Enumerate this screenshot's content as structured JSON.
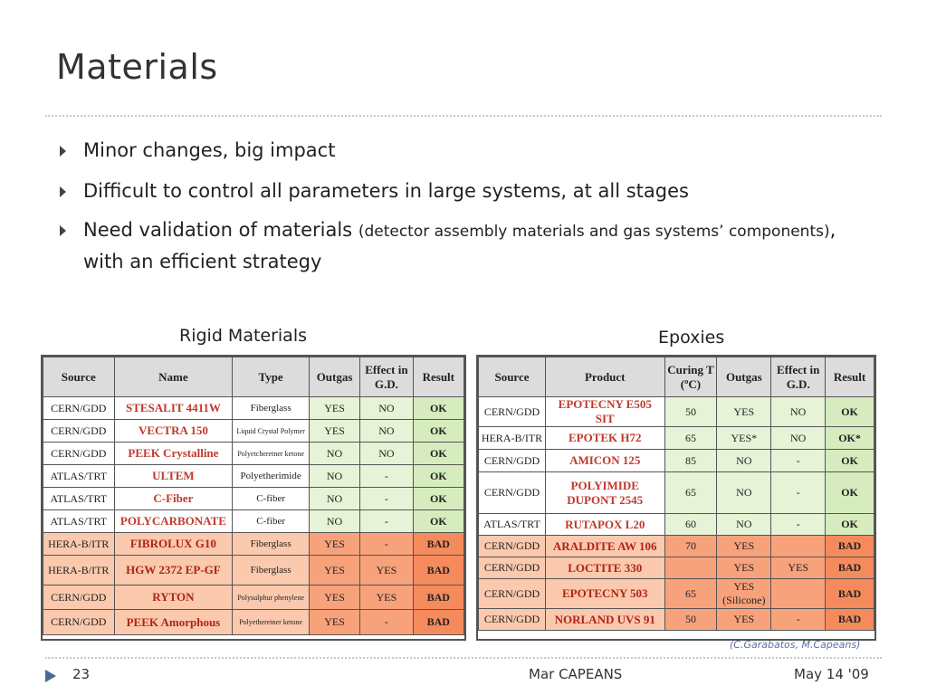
{
  "slide": {
    "title": "Materials",
    "bullets": [
      {
        "text": "Minor changes, big impact"
      },
      {
        "text": "Difficult to control all parameters in large systems, at all stages"
      },
      {
        "pre": "Need validation of materials ",
        "small": "(detector assembly materials and gas systems’ components)",
        "post": ", with an efficient strategy"
      }
    ]
  },
  "rigid": {
    "caption": "Rigid Materials",
    "headers": [
      "Source",
      "Name",
      "Type",
      "Outgas",
      "Effect in G.D.",
      "Result"
    ],
    "rows": [
      {
        "source": "CERN/GDD",
        "name": "STESALIT 4411W",
        "type": "Fiberglass",
        "outgas": "YES",
        "effect": "NO",
        "result": "OK",
        "status": "good"
      },
      {
        "source": "CERN/GDD",
        "name": "VECTRA 150",
        "type": "Liquid Crystal Polymer",
        "outgas": "YES",
        "effect": "NO",
        "result": "OK",
        "status": "good"
      },
      {
        "source": "CERN/GDD",
        "name": "PEEK Crystalline",
        "type": "Polyetcheretner ketone",
        "outgas": "NO",
        "effect": "NO",
        "result": "OK",
        "status": "good"
      },
      {
        "source": "ATLAS/TRT",
        "name": "ULTEM",
        "type": "Polyetherimide",
        "outgas": "NO",
        "effect": "-",
        "result": "OK",
        "status": "good"
      },
      {
        "source": "ATLAS/TRT",
        "name": "C-Fiber",
        "type": "C-fiber",
        "outgas": "NO",
        "effect": "-",
        "result": "OK",
        "status": "good"
      },
      {
        "source": "ATLAS/TRT",
        "name": "POLYCARBONATE",
        "type": "C-fiber",
        "outgas": "NO",
        "effect": "-",
        "result": "OK",
        "status": "good"
      },
      {
        "source": "HERA-B/ITR",
        "name": "FIBROLUX G10",
        "type": "Fiberglass",
        "outgas": "YES",
        "effect": "-",
        "result": "BAD",
        "status": "bad"
      },
      {
        "source": "HERA-B/ITR",
        "name": "HGW 2372 EP-GF",
        "type": "Fiberglass",
        "outgas": "YES",
        "effect": "YES",
        "result": "BAD",
        "status": "bad"
      },
      {
        "source": "CERN/GDD",
        "name": "RYTON",
        "type": "Polysulphur phenylene",
        "outgas": "YES",
        "effect": "YES",
        "result": "BAD",
        "status": "bad"
      },
      {
        "source": "CERN/GDD",
        "name": "PEEK Amorphous",
        "type": "Polyetheretner ketone",
        "outgas": "YES",
        "effect": "-",
        "result": "BAD",
        "status": "bad"
      }
    ]
  },
  "epoxies": {
    "caption": "Epoxies",
    "headers": [
      "Source",
      "Product",
      "Curing T (ºC)",
      "Outgas",
      "Effect in G.D.",
      "Result"
    ],
    "rows": [
      {
        "source": "CERN/GDD",
        "product": "EPOTECNY E505 SIT",
        "curing": "50",
        "outgas": "YES",
        "effect": "NO",
        "result": "OK",
        "status": "good"
      },
      {
        "source": "HERA-B/ITR",
        "product": "EPOTEK H72",
        "curing": "65",
        "outgas": "YES*",
        "effect": "NO",
        "result": "OK*",
        "status": "good"
      },
      {
        "source": "CERN/GDD",
        "product": "AMICON 125",
        "curing": "85",
        "outgas": "NO",
        "effect": "-",
        "result": "OK",
        "status": "good"
      },
      {
        "source": "CERN/GDD",
        "product": "POLYIMIDE DUPONT 2545",
        "curing": "65",
        "outgas": "NO",
        "effect": "-",
        "result": "OK",
        "status": "good"
      },
      {
        "source": "ATLAS/TRT",
        "product": "RUTAPOX L20",
        "curing": "60",
        "outgas": "NO",
        "effect": "-",
        "result": "OK",
        "status": "good"
      },
      {
        "source": "CERN/GDD",
        "product": "ARALDITE AW 106",
        "curing": "70",
        "outgas": "YES",
        "effect": "",
        "result": "BAD",
        "status": "bad"
      },
      {
        "source": "CERN/GDD",
        "product": "LOCTITE 330",
        "curing": "",
        "outgas": "YES",
        "effect": "YES",
        "result": "BAD",
        "status": "bad"
      },
      {
        "source": "CERN/GDD",
        "product": "EPOTECNY 503",
        "curing": "65",
        "outgas": "YES (Silicone)",
        "effect": "",
        "result": "BAD",
        "status": "bad"
      },
      {
        "source": "CERN/GDD",
        "product": "NORLAND UVS 91",
        "curing": "50",
        "outgas": "YES",
        "effect": "-",
        "result": "BAD",
        "status": "bad"
      }
    ]
  },
  "credit": "(C.Garabatos, M.Capeans)",
  "footer": {
    "page": "23",
    "author": "Mar CAPEANS",
    "date": "May 14 '09"
  }
}
